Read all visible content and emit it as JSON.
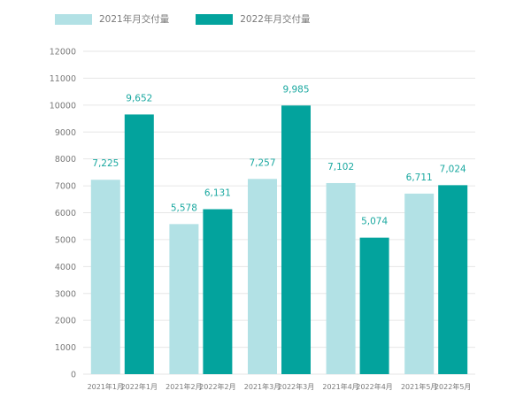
{
  "legend": {
    "items": [
      {
        "label": "2021年月交付量",
        "color": "#b2e1e5"
      },
      {
        "label": "2022年月交付量",
        "color": "#03a39d"
      }
    ]
  },
  "chart_data": {
    "type": "bar",
    "title": "",
    "xlabel": "",
    "ylabel": "",
    "ylim": [
      0,
      12000
    ],
    "yticks": [
      0,
      1000,
      2000,
      3000,
      4000,
      5000,
      6000,
      7000,
      8000,
      9000,
      10000,
      11000,
      12000
    ],
    "grid": true,
    "legend_position": "top-left",
    "groups": [
      {
        "bars": [
          {
            "label": "2021年1月",
            "value": 7225,
            "value_label": "7,225",
            "series": 0
          },
          {
            "label": "2022年1月",
            "value": 9652,
            "value_label": "9,652",
            "series": 1
          }
        ]
      },
      {
        "bars": [
          {
            "label": "2021年2月",
            "value": 5578,
            "value_label": "5,578",
            "series": 0
          },
          {
            "label": "2022年2月",
            "value": 6131,
            "value_label": "6,131",
            "series": 1
          }
        ]
      },
      {
        "bars": [
          {
            "label": "2021年3月",
            "value": 7257,
            "value_label": "7,257",
            "series": 0
          },
          {
            "label": "2022年3月",
            "value": 9985,
            "value_label": "9,985",
            "series": 1
          }
        ]
      },
      {
        "bars": [
          {
            "label": "2021年4月",
            "value": 7102,
            "value_label": "7,102",
            "series": 0
          },
          {
            "label": "2022年4月",
            "value": 5074,
            "value_label": "5,074",
            "series": 1
          }
        ]
      },
      {
        "bars": [
          {
            "label": "2021年5月",
            "value": 6711,
            "value_label": "6,711",
            "series": 0
          },
          {
            "label": "2022年5月",
            "value": 7024,
            "value_label": "7,024",
            "series": 1
          }
        ]
      }
    ],
    "colors": {
      "series_0": "#b2e1e5",
      "series_1": "#03a39d",
      "grid": "#e6e6e6",
      "tick_text": "#7a7a7a",
      "value_text": "#1aa8a0"
    }
  }
}
